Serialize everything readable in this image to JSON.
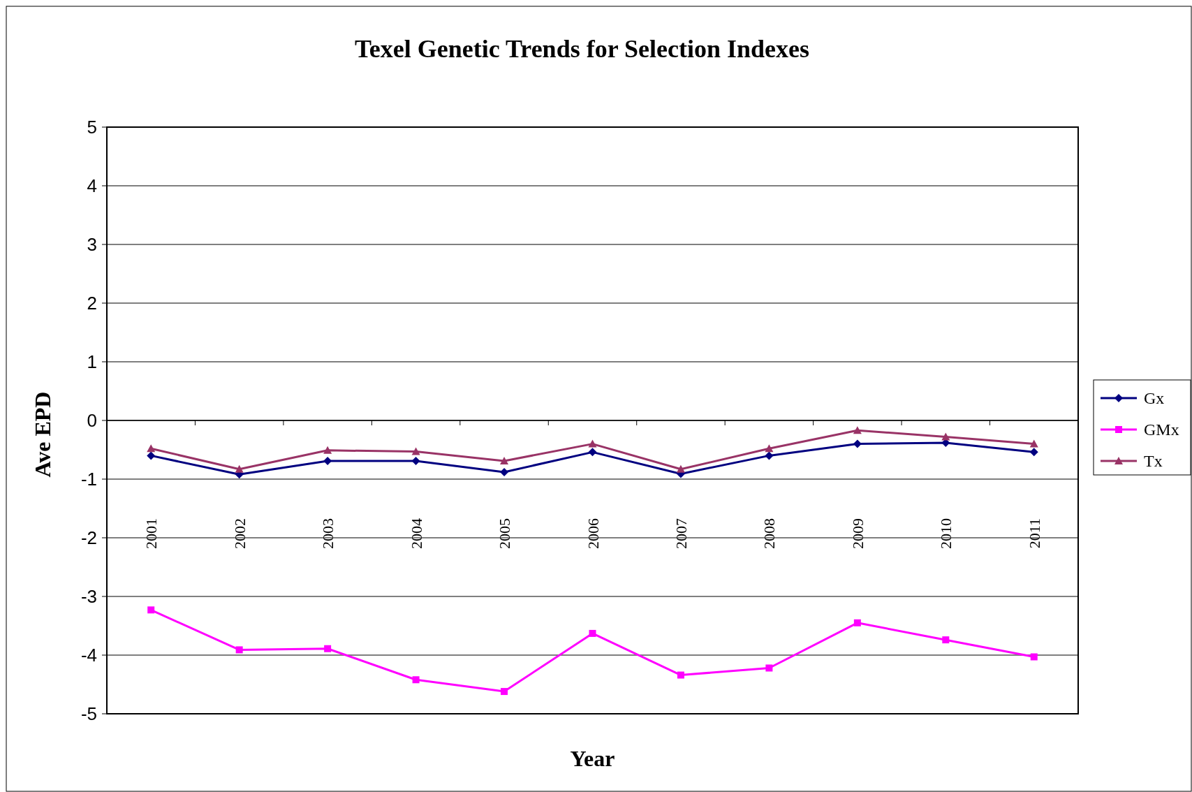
{
  "chart_data": {
    "type": "line",
    "title": "Texel Genetic Trends for Selection Indexes",
    "xlabel": "Year",
    "ylabel": "Ave EPD",
    "categories": [
      "2001",
      "2002",
      "2003",
      "2004",
      "2005",
      "2006",
      "2007",
      "2008",
      "2009",
      "2010",
      "2011"
    ],
    "series": [
      {
        "name": "Gx",
        "color": "#000080",
        "marker": "diamond",
        "values": [
          -0.6,
          -0.92,
          -0.69,
          -0.69,
          -0.88,
          -0.54,
          -0.91,
          -0.6,
          -0.4,
          -0.38,
          -0.54
        ]
      },
      {
        "name": "GMx",
        "color": "#ff00ff",
        "marker": "square",
        "values": [
          -3.23,
          -3.91,
          -3.89,
          -4.42,
          -4.62,
          -3.63,
          -4.34,
          -4.22,
          -3.45,
          -3.74,
          -4.03
        ]
      },
      {
        "name": "Tx",
        "color": "#993366",
        "marker": "triangle",
        "values": [
          -0.48,
          -0.83,
          -0.51,
          -0.53,
          -0.69,
          -0.4,
          -0.83,
          -0.48,
          -0.17,
          -0.28,
          -0.4
        ]
      }
    ],
    "ylim": [
      -5,
      5
    ],
    "yticks": [
      -5,
      -4,
      -3,
      -2,
      -1,
      0,
      1,
      2,
      3,
      4,
      5
    ],
    "grid": "y",
    "legend": "right",
    "line_style": "solid"
  }
}
